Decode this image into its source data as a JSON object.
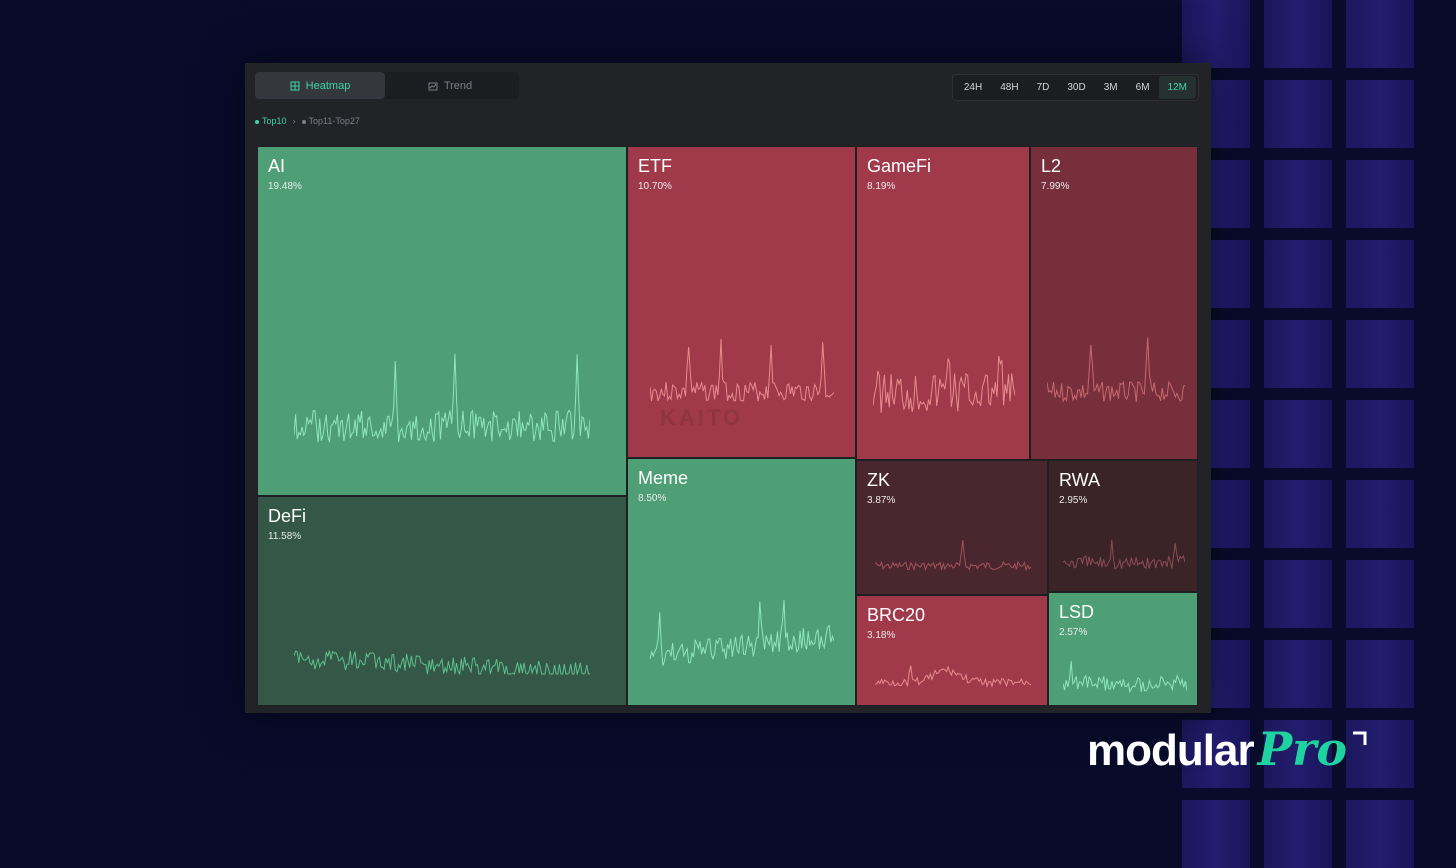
{
  "tabs": [
    {
      "label": "Heatmap",
      "icon": "heatmap-icon",
      "active": true
    },
    {
      "label": "Trend",
      "icon": "trend-icon",
      "active": false
    }
  ],
  "periods": [
    "24H",
    "48H",
    "7D",
    "30D",
    "3M",
    "6M",
    "12M"
  ],
  "active_period": "12M",
  "breadcrumb": {
    "current": "Top10",
    "next": "Top11-Top27"
  },
  "colors": {
    "accent": "#3fd3a8",
    "up": "#4f9f76",
    "up_dark": "#345747",
    "down": "#a03a4a",
    "down_dark": "#762f3b",
    "down_darker": "#4a272e",
    "down_darkest": "#3a2428"
  },
  "tiles": [
    {
      "name": "AI",
      "share": "19.48%"
    },
    {
      "name": "DeFi",
      "share": "11.58%"
    },
    {
      "name": "ETF",
      "share": "10.70%"
    },
    {
      "name": "Meme",
      "share": "8.50%"
    },
    {
      "name": "GameFi",
      "share": "8.19%"
    },
    {
      "name": "L2",
      "share": "7.99%"
    },
    {
      "name": "ZK",
      "share": "3.87%"
    },
    {
      "name": "RWA",
      "share": "2.95%"
    },
    {
      "name": "BRC20",
      "share": "3.18%"
    },
    {
      "name": "LSD",
      "share": "2.57%"
    }
  ],
  "watermark": "KAITO",
  "logo": {
    "main": "modular",
    "pro": "Pro"
  }
}
